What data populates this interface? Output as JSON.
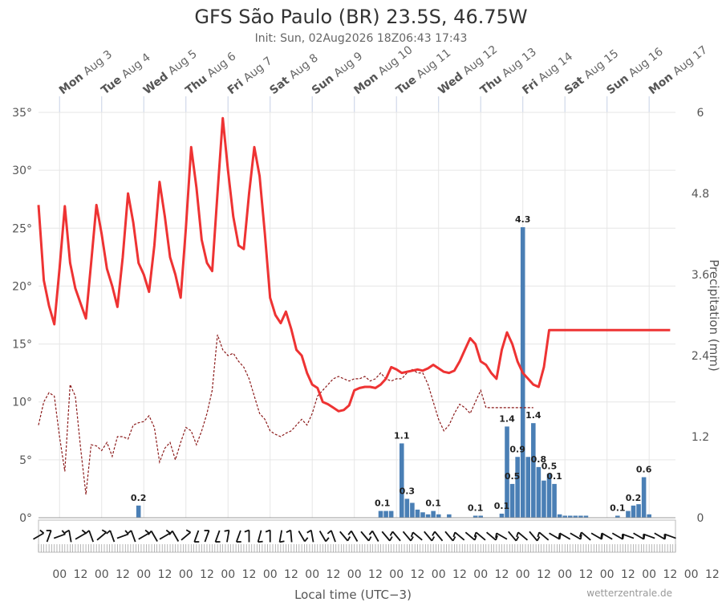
{
  "chart_data": {
    "type": "line",
    "title": "GFS São Paulo (BR) 23.5S, 46.75W",
    "subtitle": "Init: Sun, 02Aug2026 18Z06:43 17:43",
    "xlabel": "Local time (UTC−3)",
    "ylabel_right": "Precipitation (mm)",
    "credit": "wetterzentrale.de",
    "days": [
      {
        "name": "Mon",
        "date": "Aug 3"
      },
      {
        "name": "Tue",
        "date": "Aug 4"
      },
      {
        "name": "Wed",
        "date": "Aug 5"
      },
      {
        "name": "Thu",
        "date": "Aug 6"
      },
      {
        "name": "Fri",
        "date": "Aug 7"
      },
      {
        "name": "Sat",
        "date": "Aug 8"
      },
      {
        "name": "Sun",
        "date": "Aug 9"
      },
      {
        "name": "Mon",
        "date": "Aug 10"
      },
      {
        "name": "Tue",
        "date": "Aug 11"
      },
      {
        "name": "Wed",
        "date": "Aug 12"
      },
      {
        "name": "Thu",
        "date": "Aug 13"
      },
      {
        "name": "Fri",
        "date": "Aug 14"
      },
      {
        "name": "Sat",
        "date": "Aug 15"
      },
      {
        "name": "Sun",
        "date": "Aug 16"
      },
      {
        "name": "Mon",
        "date": "Aug 17"
      }
    ],
    "x_ticks": [
      "00",
      "12",
      "00",
      "12",
      "00",
      "12",
      "00",
      "12",
      "00",
      "12",
      "00",
      "12",
      "00",
      "12",
      "00",
      "12",
      "00",
      "12",
      "00",
      "12",
      "00",
      "12",
      "00",
      "12",
      "00",
      "12",
      "00",
      "12",
      "00",
      "12",
      "00",
      "12"
    ],
    "y_left": {
      "min": 0,
      "max": 35,
      "ticks": [
        "0°",
        "5°",
        "10°",
        "15°",
        "20°",
        "25°",
        "30°",
        "35°"
      ],
      "tick_values": [
        0,
        5,
        10,
        15,
        20,
        25,
        30,
        35
      ]
    },
    "y_right": {
      "min": 0,
      "max": 6,
      "ticks": [
        "0",
        "1.2",
        "2.4",
        "3.6",
        "4.8",
        "6"
      ],
      "tick_values": [
        0,
        1.2,
        2.4,
        3.6,
        4.8,
        6
      ]
    },
    "x_unit": "hours since Sun Aug 2 12:00 local",
    "series": [
      {
        "name": "Temperature (2m)",
        "color": "#ee3333",
        "x": [
          0,
          3,
          6,
          9,
          12,
          15,
          18,
          21,
          24,
          27,
          30,
          33,
          36,
          39,
          42,
          45,
          48,
          51,
          54,
          57,
          60,
          63,
          66,
          69,
          72,
          75,
          78,
          81,
          84,
          87,
          90,
          93,
          96,
          99,
          102,
          105,
          108,
          111,
          114,
          117,
          120,
          123,
          126,
          129,
          132,
          135,
          138,
          141,
          144,
          147,
          150,
          153,
          156,
          159,
          162,
          165,
          168,
          171,
          174,
          177,
          180,
          183,
          186,
          189,
          192,
          195,
          198,
          201,
          204,
          207,
          210,
          213,
          216,
          219,
          222,
          225,
          228,
          231,
          234,
          237,
          240,
          243,
          246,
          249,
          252,
          255,
          258,
          261,
          264,
          267,
          270,
          273,
          276,
          279,
          282,
          285,
          288,
          291,
          294,
          297,
          300,
          303,
          306,
          309,
          312,
          315,
          318,
          321,
          324,
          327,
          330,
          333,
          336,
          339,
          342,
          345,
          348,
          351,
          354,
          357,
          360
        ],
        "values": [
          27.0,
          20.5,
          18.3,
          16.7,
          21.5,
          26.9,
          22.0,
          19.8,
          18.5,
          17.2,
          22.0,
          27.0,
          24.5,
          21.5,
          20.0,
          18.2,
          22.5,
          28.0,
          25.5,
          22.0,
          21.0,
          19.5,
          23.5,
          29.0,
          26.0,
          22.5,
          21.0,
          19.0,
          25.0,
          32.0,
          28.5,
          24.0,
          22.0,
          21.3,
          28.0,
          34.5,
          30.0,
          26.0,
          23.5,
          23.2,
          28.0,
          32.0,
          29.5,
          24.5,
          19.0,
          17.5,
          16.8,
          17.8,
          16.3,
          14.5,
          14.0,
          12.5,
          11.5,
          11.2,
          10.0,
          9.8,
          9.5,
          9.2,
          9.3,
          9.7,
          11.0,
          11.2,
          11.3,
          11.3,
          11.2,
          11.5,
          12.0,
          13.0,
          12.8,
          12.5,
          12.6,
          12.7,
          12.8,
          12.7,
          12.9,
          13.2,
          12.9,
          12.6,
          12.5,
          12.7,
          13.5,
          14.5,
          15.5,
          15.0,
          13.5,
          13.2,
          12.5,
          12.0,
          14.5,
          16.0,
          15.0,
          13.5,
          12.5,
          12.0,
          11.5,
          11.3,
          13.0,
          16.2,
          16.2,
          16.2,
          16.2,
          16.2,
          16.2,
          16.2,
          16.2,
          16.2,
          16.2,
          16.2,
          16.2,
          16.2,
          16.2,
          16.2,
          16.2,
          16.2,
          16.2,
          16.2,
          16.2,
          16.2,
          16.2,
          16.2,
          16.2
        ]
      },
      {
        "name": "Dew point (2m)",
        "color": "#8b1a1a",
        "x": [
          0,
          3,
          6,
          9,
          12,
          15,
          18,
          21,
          24,
          27,
          30,
          33,
          36,
          39,
          42,
          45,
          48,
          51,
          54,
          57,
          60,
          63,
          66,
          69,
          72,
          75,
          78,
          81,
          84,
          87,
          90,
          93,
          96,
          99,
          102,
          105,
          108,
          111,
          114,
          117,
          120,
          123,
          126,
          129,
          132,
          135,
          138,
          141,
          144,
          147,
          150,
          153,
          156,
          159,
          162,
          165,
          168,
          171,
          174,
          177,
          180,
          183,
          186,
          189,
          192,
          195,
          198,
          201,
          204,
          207,
          210,
          213,
          216,
          219,
          222,
          225,
          228,
          231,
          234,
          237,
          240,
          243,
          246,
          249,
          252,
          255,
          258,
          261,
          264,
          267,
          270,
          273,
          276,
          279,
          282
        ],
        "values": [
          8.0,
          10.0,
          10.8,
          10.5,
          7.0,
          4.0,
          11.5,
          10.5,
          6.0,
          2.0,
          6.3,
          6.2,
          5.8,
          6.5,
          5.3,
          7.0,
          7.0,
          6.8,
          8.0,
          8.2,
          8.3,
          8.8,
          7.8,
          4.8,
          6.0,
          6.5,
          5.0,
          6.5,
          7.8,
          7.5,
          6.3,
          7.5,
          9.0,
          11.0,
          15.8,
          14.5,
          14.0,
          14.2,
          13.5,
          13.0,
          12.0,
          10.5,
          9.0,
          8.5,
          7.5,
          7.2,
          7.0,
          7.3,
          7.5,
          8.0,
          8.5,
          8.0,
          9.0,
          10.5,
          11.0,
          11.5,
          12.0,
          12.2,
          12.0,
          11.8,
          12.0,
          12.0,
          12.2,
          11.8,
          12.0,
          12.5,
          12.0,
          11.8,
          12.0,
          12.0,
          12.5,
          12.8,
          12.5,
          12.5,
          11.5,
          10.0,
          8.5,
          7.5,
          8.0,
          9.0,
          9.8,
          9.5,
          9.0,
          10.0,
          11.0,
          9.5,
          9.5,
          9.5,
          9.5,
          9.5,
          9.5,
          9.5,
          9.5,
          9.5,
          9.5
        ]
      },
      {
        "name": "Precipitation",
        "color": "#4a7fb5",
        "type": "bar",
        "bar_x": [
          57,
          195,
          198,
          201,
          207,
          210,
          213,
          216,
          219,
          222,
          225,
          228,
          234,
          249,
          252,
          264,
          267,
          270,
          273,
          276,
          279,
          282,
          285,
          288,
          291,
          294,
          297,
          300,
          303,
          306,
          309,
          312,
          330,
          336,
          339,
          342,
          345,
          348
        ],
        "bar_values": [
          0.18,
          0.1,
          0.1,
          0.1,
          1.1,
          0.28,
          0.22,
          0.12,
          0.08,
          0.05,
          0.1,
          0.05,
          0.05,
          0.03,
          0.03,
          0.06,
          1.35,
          0.5,
          0.9,
          4.3,
          0.9,
          1.4,
          0.75,
          0.55,
          0.65,
          0.5,
          0.05,
          0.03,
          0.03,
          0.03,
          0.03,
          0.03,
          0.03,
          0.1,
          0.18,
          0.2,
          0.6,
          0.05
        ],
        "labels": [
          {
            "x": 57,
            "text": "0.2"
          },
          {
            "x": 196,
            "text": "0.1"
          },
          {
            "x": 207,
            "text": "1.1"
          },
          {
            "x": 210,
            "text": "0.3"
          },
          {
            "x": 225,
            "text": "0.1"
          },
          {
            "x": 249,
            "text": "0.1"
          },
          {
            "x": 264,
            "text": "0.1"
          },
          {
            "x": 267,
            "text": "1.4"
          },
          {
            "x": 270,
            "text": "0.5"
          },
          {
            "x": 273,
            "text": "0.9"
          },
          {
            "x": 276,
            "text": "4.3"
          },
          {
            "x": 282,
            "text": "1.4"
          },
          {
            "x": 285,
            "text": "0.8"
          },
          {
            "x": 291,
            "text": "0.5"
          },
          {
            "x": 294,
            "text": "0.1"
          },
          {
            "x": 330,
            "text": "0.1"
          },
          {
            "x": 339,
            "text": "0.2"
          },
          {
            "x": 345,
            "text": "0.6"
          }
        ]
      }
    ],
    "wind_barbs_x": [
      0,
      6,
      12,
      18,
      24,
      30,
      36,
      42,
      48,
      54,
      60,
      66,
      72,
      78,
      84,
      90,
      96,
      102,
      108,
      114,
      120,
      126,
      132,
      138,
      144,
      150,
      156,
      162,
      168,
      174,
      180,
      186,
      192,
      198,
      204,
      210,
      216,
      222,
      228,
      234,
      240,
      246,
      252,
      258,
      264,
      270,
      276,
      282,
      288,
      294,
      300,
      306,
      312,
      318,
      324,
      330,
      336,
      342,
      348,
      354,
      360
    ],
    "wind_barbs_deg": [
      240,
      200,
      250,
      170,
      240,
      160,
      230,
      160,
      250,
      160,
      240,
      150,
      240,
      150,
      230,
      20,
      200,
      20,
      190,
      20,
      180,
      15,
      180,
      10,
      175,
      330,
      170,
      330,
      160,
      320,
      150,
      320,
      150,
      320,
      140,
      320,
      130,
      320,
      140,
      320,
      130,
      310,
      130,
      310,
      120,
      320,
      130,
      320,
      130,
      300,
      120,
      300,
      130,
      300,
      120,
      300,
      110,
      300,
      110,
      300,
      110
    ]
  }
}
